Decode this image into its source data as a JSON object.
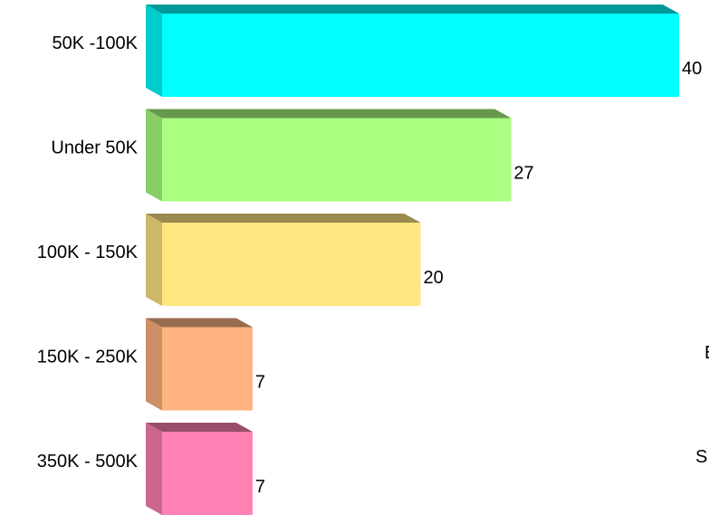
{
  "chart_data": {
    "type": "bar",
    "orientation": "horizontal",
    "style": "3d",
    "categories": [
      "50K -100K",
      "Under 50K",
      "100K - 150K",
      "150K - 250K",
      "350K - 500K"
    ],
    "values": [
      40,
      27,
      20,
      7,
      7
    ],
    "value_labels": [
      "40",
      "27",
      "20",
      "7",
      "7"
    ],
    "colors": [
      "#00FFFF",
      "#AAFF80",
      "#FFE680",
      "#FFB380",
      "#FF80B3"
    ],
    "xlim": [
      0,
      40
    ],
    "grid": false,
    "title": "",
    "xlabel": "",
    "ylabel": ""
  },
  "partial_text": [
    "E",
    "S"
  ]
}
